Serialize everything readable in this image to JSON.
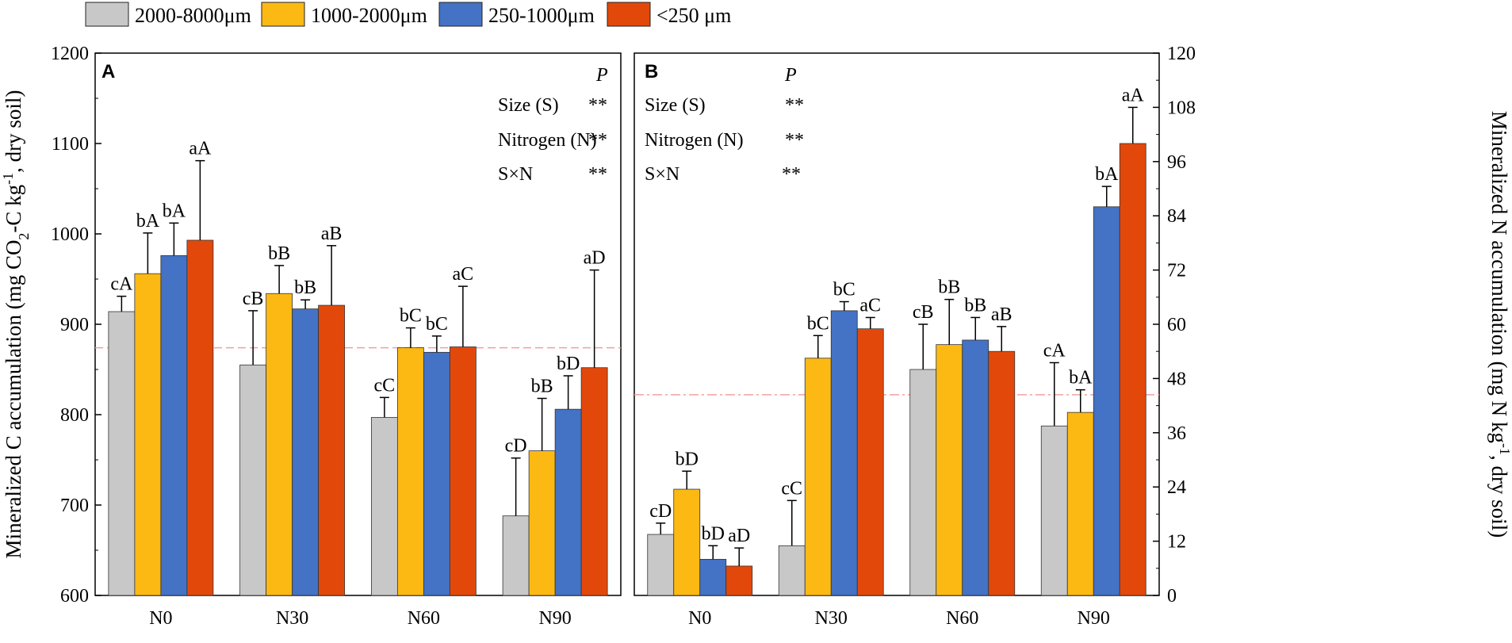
{
  "legend": {
    "items": [
      {
        "label": "2000-8000μm",
        "color": "#c8c8c8"
      },
      {
        "label": "1000-2000μm",
        "color": "#fdb913"
      },
      {
        "label": "250-1000μm",
        "color": "#4472c4"
      },
      {
        "label": "<250 μm",
        "color": "#e3480b"
      }
    ]
  },
  "stats": {
    "header": "P",
    "rows": [
      {
        "label": "Size (S)",
        "value": "**"
      },
      {
        "label": "Nitrogen (N)",
        "value": "**"
      },
      {
        "label": "S×N",
        "value": "**"
      }
    ]
  },
  "chart_data": [
    {
      "type": "bar",
      "panel_label": "A",
      "categories": [
        "N0",
        "N30",
        "N60",
        "N90"
      ],
      "ylabel": "Mineralized C accumulation (mg CO2-C kg-1, dry soil)",
      "ylim": [
        600,
        1200
      ],
      "yticks": [
        600,
        700,
        800,
        900,
        1000,
        1100,
        1200
      ],
      "reference_line": 874,
      "series": [
        {
          "name": "2000-8000μm",
          "values": [
            914,
            855,
            797,
            688
          ],
          "errors": [
            17,
            60,
            22,
            64
          ],
          "labels": [
            "cA",
            "cB",
            "cC",
            "cD"
          ]
        },
        {
          "name": "1000-2000μm",
          "values": [
            956,
            934,
            874,
            760
          ],
          "errors": [
            45,
            31,
            22,
            58
          ],
          "labels": [
            "bA",
            "bB",
            "bC",
            "bB"
          ]
        },
        {
          "name": "250-1000μm",
          "values": [
            976,
            917,
            869,
            806
          ],
          "errors": [
            36,
            10,
            18,
            37
          ],
          "labels": [
            "bA",
            "bB",
            "bC",
            "bD"
          ]
        },
        {
          "name": "<250 μm",
          "values": [
            993,
            921,
            875,
            852
          ],
          "errors": [
            88,
            66,
            67,
            108
          ],
          "labels": [
            "aA",
            "aB",
            "aC",
            "aD"
          ]
        }
      ]
    },
    {
      "type": "bar",
      "panel_label": "B",
      "categories": [
        "N0",
        "N30",
        "N60",
        "N90"
      ],
      "ylabel": "Mineralized N accumulation (mg N kg-1, dry soil)",
      "ylim": [
        0,
        120
      ],
      "yticks": [
        0,
        12,
        24,
        36,
        48,
        60,
        72,
        84,
        96,
        108,
        120
      ],
      "reference_line": 44.4,
      "series": [
        {
          "name": "2000-8000μm",
          "values": [
            13.5,
            11.0,
            50.0,
            37.5
          ],
          "errors": [
            2.5,
            10.0,
            10.0,
            14.0
          ],
          "labels": [
            "cD",
            "cC",
            "cB",
            "cA"
          ]
        },
        {
          "name": "1000-2000μm",
          "values": [
            23.5,
            52.5,
            55.5,
            40.5
          ],
          "errors": [
            4.0,
            5.0,
            10.0,
            5.0
          ],
          "labels": [
            "bD",
            "bC",
            "bB",
            "bA"
          ]
        },
        {
          "name": "250-1000μm",
          "values": [
            8.0,
            63.0,
            56.5,
            86.0
          ],
          "errors": [
            3.0,
            2.0,
            5.0,
            4.5
          ],
          "labels": [
            "bD",
            "bC",
            "bB",
            "bA"
          ]
        },
        {
          "name": "<250 μm",
          "values": [
            6.5,
            59.0,
            54.0,
            100.0
          ],
          "errors": [
            4.0,
            2.5,
            5.5,
            8.0
          ],
          "labels": [
            "aD",
            "aC",
            "aB",
            "aA"
          ]
        }
      ]
    }
  ]
}
